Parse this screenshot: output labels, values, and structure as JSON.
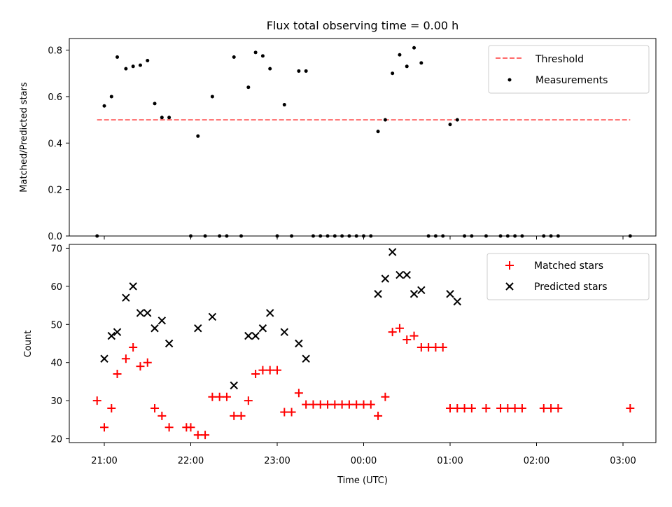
{
  "chart_data": [
    {
      "type": "scatter",
      "title": "Flux total observing time = 0.00 h",
      "xlabel": "",
      "ylabel": "Matched/Predicted stars",
      "ylim": [
        0,
        0.85
      ],
      "yticks": [
        "0.0",
        "0.2",
        "0.4",
        "0.6",
        "0.8"
      ],
      "ytick_values": [
        0,
        0.2,
        0.4,
        0.6,
        0.8
      ],
      "threshold": {
        "name": "Threshold",
        "value": 0.5,
        "color": "#ff6a6a",
        "style": "dashed",
        "x_range": [
          "20:55",
          "03:05"
        ]
      },
      "series": [
        {
          "name": "Measurements",
          "color": "#000000",
          "marker": "dot",
          "points": [
            [
              "20:55",
              0.0
            ],
            [
              "21:00",
              0.56
            ],
            [
              "21:05",
              0.6
            ],
            [
              "21:09",
              0.77
            ],
            [
              "21:15",
              0.72
            ],
            [
              "21:20",
              0.73
            ],
            [
              "21:25",
              0.735
            ],
            [
              "21:30",
              0.755
            ],
            [
              "21:35",
              0.57
            ],
            [
              "21:40",
              0.51
            ],
            [
              "21:45",
              0.51
            ],
            [
              "22:00",
              0.0
            ],
            [
              "22:05",
              0.43
            ],
            [
              "22:10",
              0.0
            ],
            [
              "22:15",
              0.6
            ],
            [
              "22:20",
              0.0
            ],
            [
              "22:25",
              0.0
            ],
            [
              "22:30",
              0.77
            ],
            [
              "22:35",
              0.0
            ],
            [
              "22:40",
              0.64
            ],
            [
              "22:45",
              0.79
            ],
            [
              "22:50",
              0.775
            ],
            [
              "22:55",
              0.72
            ],
            [
              "23:00",
              0.0
            ],
            [
              "23:05",
              0.565
            ],
            [
              "23:10",
              0.0
            ],
            [
              "23:15",
              0.71
            ],
            [
              "23:20",
              0.71
            ],
            [
              "23:25",
              0.0
            ],
            [
              "23:30",
              0.0
            ],
            [
              "23:35",
              0.0
            ],
            [
              "23:40",
              0.0
            ],
            [
              "23:45",
              0.0
            ],
            [
              "23:50",
              0.0
            ],
            [
              "23:55",
              0.0
            ],
            [
              "00:00",
              0.0
            ],
            [
              "00:05",
              0.0
            ],
            [
              "00:10",
              0.45
            ],
            [
              "00:15",
              0.5
            ],
            [
              "00:20",
              0.7
            ],
            [
              "00:25",
              0.78
            ],
            [
              "00:30",
              0.73
            ],
            [
              "00:35",
              0.81
            ],
            [
              "00:40",
              0.745
            ],
            [
              "00:45",
              0.0
            ],
            [
              "00:50",
              0.0
            ],
            [
              "00:55",
              0.0
            ],
            [
              "01:00",
              0.48
            ],
            [
              "01:05",
              0.5
            ],
            [
              "01:10",
              0.0
            ],
            [
              "01:15",
              0.0
            ],
            [
              "01:25",
              0.0
            ],
            [
              "01:35",
              0.0
            ],
            [
              "01:40",
              0.0
            ],
            [
              "01:45",
              0.0
            ],
            [
              "01:50",
              0.0
            ],
            [
              "02:05",
              0.0
            ],
            [
              "02:10",
              0.0
            ],
            [
              "02:15",
              0.0
            ],
            [
              "03:05",
              0.0
            ]
          ]
        }
      ],
      "legend": {
        "placement": "top-right",
        "entries": [
          "Threshold",
          "Measurements"
        ]
      }
    },
    {
      "type": "scatter",
      "title": "",
      "xlabel": "Time (UTC)",
      "ylabel": "Count",
      "ylim": [
        19,
        71
      ],
      "yticks": [
        "20",
        "30",
        "40",
        "50",
        "60",
        "70"
      ],
      "ytick_values": [
        20,
        30,
        40,
        50,
        60,
        70
      ],
      "xticks": [
        "21:00",
        "22:00",
        "23:00",
        "00:00",
        "01:00",
        "02:00",
        "03:00"
      ],
      "series": [
        {
          "name": "Matched stars",
          "color": "#ff0000",
          "marker": "plus",
          "points": [
            [
              "20:55",
              30
            ],
            [
              "21:00",
              23
            ],
            [
              "21:05",
              28
            ],
            [
              "21:09",
              37
            ],
            [
              "21:15",
              41
            ],
            [
              "21:20",
              44
            ],
            [
              "21:25",
              39
            ],
            [
              "21:30",
              40
            ],
            [
              "21:35",
              28
            ],
            [
              "21:40",
              26
            ],
            [
              "21:45",
              23
            ],
            [
              "21:57",
              23
            ],
            [
              "22:00",
              23
            ],
            [
              "22:05",
              21
            ],
            [
              "22:10",
              21
            ],
            [
              "22:15",
              31
            ],
            [
              "22:20",
              31
            ],
            [
              "22:25",
              31
            ],
            [
              "22:30",
              26
            ],
            [
              "22:35",
              26
            ],
            [
              "22:40",
              30
            ],
            [
              "22:45",
              37
            ],
            [
              "22:50",
              38
            ],
            [
              "22:55",
              38
            ],
            [
              "23:00",
              38
            ],
            [
              "23:05",
              27
            ],
            [
              "23:10",
              27
            ],
            [
              "23:15",
              32
            ],
            [
              "23:20",
              29
            ],
            [
              "23:25",
              29
            ],
            [
              "23:30",
              29
            ],
            [
              "23:35",
              29
            ],
            [
              "23:40",
              29
            ],
            [
              "23:45",
              29
            ],
            [
              "23:50",
              29
            ],
            [
              "23:55",
              29
            ],
            [
              "00:00",
              29
            ],
            [
              "00:05",
              29
            ],
            [
              "00:10",
              26
            ],
            [
              "00:15",
              31
            ],
            [
              "00:20",
              48
            ],
            [
              "00:25",
              49
            ],
            [
              "00:30",
              46
            ],
            [
              "00:35",
              47
            ],
            [
              "00:40",
              44
            ],
            [
              "00:45",
              44
            ],
            [
              "00:50",
              44
            ],
            [
              "00:55",
              44
            ],
            [
              "01:00",
              28
            ],
            [
              "01:05",
              28
            ],
            [
              "01:10",
              28
            ],
            [
              "01:15",
              28
            ],
            [
              "01:25",
              28
            ],
            [
              "01:35",
              28
            ],
            [
              "01:40",
              28
            ],
            [
              "01:45",
              28
            ],
            [
              "01:50",
              28
            ],
            [
              "02:05",
              28
            ],
            [
              "02:10",
              28
            ],
            [
              "02:15",
              28
            ],
            [
              "03:05",
              28
            ]
          ]
        },
        {
          "name": "Predicted stars",
          "color": "#000000",
          "marker": "x",
          "points": [
            [
              "21:00",
              41
            ],
            [
              "21:05",
              47
            ],
            [
              "21:09",
              48
            ],
            [
              "21:15",
              57
            ],
            [
              "21:20",
              60
            ],
            [
              "21:25",
              53
            ],
            [
              "21:30",
              53
            ],
            [
              "21:35",
              49
            ],
            [
              "21:40",
              51
            ],
            [
              "21:45",
              45
            ],
            [
              "22:05",
              49
            ],
            [
              "22:15",
              52
            ],
            [
              "22:30",
              34
            ],
            [
              "22:40",
              47
            ],
            [
              "22:45",
              47
            ],
            [
              "22:50",
              49
            ],
            [
              "22:55",
              53
            ],
            [
              "23:05",
              48
            ],
            [
              "23:15",
              45
            ],
            [
              "23:20",
              41
            ],
            [
              "00:10",
              58
            ],
            [
              "00:15",
              62
            ],
            [
              "00:20",
              69
            ],
            [
              "00:25",
              63
            ],
            [
              "00:30",
              63
            ],
            [
              "00:35",
              58
            ],
            [
              "00:40",
              59
            ],
            [
              "01:00",
              58
            ],
            [
              "01:05",
              56
            ]
          ]
        }
      ],
      "legend": {
        "placement": "top-right",
        "entries": [
          "Matched stars",
          "Predicted stars"
        ]
      }
    }
  ]
}
